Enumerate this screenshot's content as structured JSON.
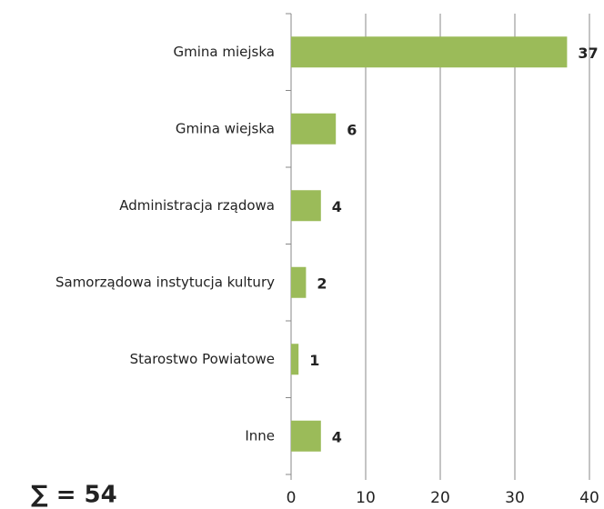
{
  "chart_data": {
    "type": "hbar",
    "categories": [
      "Gmina miejska",
      "Gmina wiejska",
      "Administracja rządowa",
      "Samorządowa instytucja kultury",
      "Starostwo Powiatowe",
      "Inne"
    ],
    "values": [
      37,
      6,
      4,
      2,
      1,
      4
    ],
    "color": "#9bbb59",
    "xlim": [
      0,
      40
    ],
    "xticks": [
      0,
      10,
      20,
      30,
      40
    ],
    "grid": true,
    "annotation": "∑ = 54"
  }
}
